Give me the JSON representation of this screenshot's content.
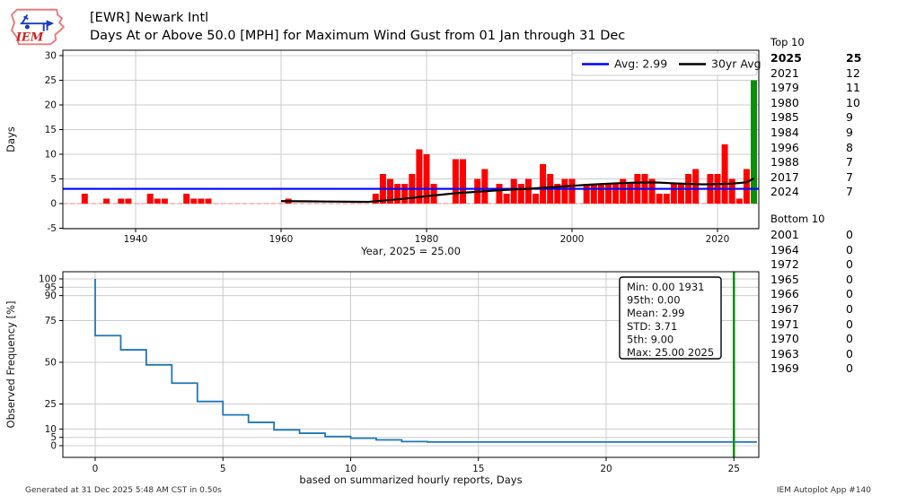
{
  "header": {
    "station_line": "[EWR] Newark Intl",
    "title_line": "Days At or Above 50.0 [MPH] for Maximum Wind Gust from 01 Jan through 31 Dec",
    "logo_text": "IEM"
  },
  "colors": {
    "bar": "#ff0000",
    "highlight": "#0a8f0a",
    "avg_line": "#0000ff",
    "avg30_line": "#000000",
    "freq_line": "#1f77b4",
    "grid": "#cccccc",
    "zero_dash": "#ff9999"
  },
  "chart_data": [
    {
      "type": "bar",
      "xlabel": "Year, 2025 = 25.00",
      "ylabel": "Days",
      "xticks": [
        1940,
        1960,
        1980,
        2000,
        2020
      ],
      "yticks": [
        -5,
        0,
        5,
        10,
        15,
        20,
        25,
        30
      ],
      "xlim": [
        1930,
        2027
      ],
      "ylim": [
        -5,
        31
      ],
      "grid": true,
      "legend_position": "upper right",
      "start_year": 1931,
      "values": [
        0,
        0,
        2,
        0,
        0,
        1,
        0,
        1,
        1,
        0,
        0,
        2,
        1,
        1,
        0,
        0,
        2,
        1,
        1,
        1,
        0,
        0,
        0,
        0,
        0,
        0,
        0,
        0,
        0,
        0,
        1,
        0,
        0,
        0,
        0,
        0,
        0,
        0,
        0,
        0,
        0,
        0,
        2,
        6,
        5,
        4,
        4,
        6,
        11,
        10,
        4,
        0,
        0,
        9,
        9,
        0,
        5,
        7,
        0,
        4,
        2,
        5,
        4,
        5,
        2,
        8,
        6,
        4,
        5,
        5,
        0,
        4,
        4,
        4,
        4,
        4,
        5,
        4,
        6,
        6,
        5,
        2,
        2,
        4,
        4,
        6,
        7,
        0,
        6,
        6,
        12,
        5,
        1,
        7,
        25
      ],
      "highlight_year": 2025,
      "highlight_value": 25,
      "avg_line": {
        "label": "Avg: 2.99",
        "value": 2.99
      },
      "avg30_line": {
        "label": "30yr Avg",
        "points": [
          [
            1960,
            0.5
          ],
          [
            1962,
            0.48
          ],
          [
            1964,
            0.45
          ],
          [
            1966,
            0.42
          ],
          [
            1968,
            0.4
          ],
          [
            1970,
            0.37
          ],
          [
            1972,
            0.35
          ],
          [
            1974,
            0.6
          ],
          [
            1976,
            0.85
          ],
          [
            1978,
            1.15
          ],
          [
            1980,
            1.5
          ],
          [
            1982,
            1.8
          ],
          [
            1984,
            2.1
          ],
          [
            1986,
            2.3
          ],
          [
            1988,
            2.5
          ],
          [
            1990,
            2.7
          ],
          [
            1992,
            2.85
          ],
          [
            1994,
            3.0
          ],
          [
            1996,
            3.2
          ],
          [
            1998,
            3.4
          ],
          [
            2000,
            3.6
          ],
          [
            2002,
            3.8
          ],
          [
            2004,
            3.95
          ],
          [
            2006,
            4.1
          ],
          [
            2008,
            4.2
          ],
          [
            2010,
            4.3
          ],
          [
            2012,
            4.25
          ],
          [
            2014,
            4.1
          ],
          [
            2016,
            4.0
          ],
          [
            2018,
            3.9
          ],
          [
            2020,
            3.95
          ],
          [
            2022,
            4.05
          ],
          [
            2024,
            4.3
          ],
          [
            2025,
            5.1
          ]
        ]
      }
    },
    {
      "type": "line",
      "xlabel": "based on summarized hourly reports, Days",
      "ylabel": "Observed Frequency [%]",
      "xticks": [
        0,
        5,
        10,
        15,
        20,
        25
      ],
      "yticks": [
        0,
        5,
        10,
        25,
        50,
        75,
        90,
        95,
        100
      ],
      "xlim": [
        -1.3,
        26
      ],
      "ylim": [
        -7,
        104
      ],
      "grid": true,
      "points": [
        [
          0,
          100
        ],
        [
          0,
          66
        ],
        [
          1,
          66
        ],
        [
          1,
          57.5
        ],
        [
          2,
          57.5
        ],
        [
          2,
          48.5
        ],
        [
          3,
          48.5
        ],
        [
          3,
          37.5
        ],
        [
          4,
          37.5
        ],
        [
          4,
          26.5
        ],
        [
          5,
          26.5
        ],
        [
          5,
          18.5
        ],
        [
          6,
          18.5
        ],
        [
          6,
          14
        ],
        [
          7,
          14
        ],
        [
          7,
          9.5
        ],
        [
          8,
          9.5
        ],
        [
          8,
          7.5
        ],
        [
          9,
          7.5
        ],
        [
          9,
          5.5
        ],
        [
          10,
          5.5
        ],
        [
          10,
          4.5
        ],
        [
          11,
          4.5
        ],
        [
          11,
          3.5
        ],
        [
          12,
          3.5
        ],
        [
          12,
          2.5
        ],
        [
          13,
          2.5
        ],
        [
          13,
          2.2
        ],
        [
          25.9,
          2.2
        ]
      ],
      "vline": {
        "x": 25
      },
      "stats_box": {
        "lines": [
          "Min: 0.00 1931",
          "95th: 0.00",
          "Mean: 2.99",
          "STD: 3.71",
          "5th: 9.00",
          "Max: 25.00 2025"
        ]
      }
    }
  ],
  "top10": {
    "title": "Top 10",
    "rows": [
      [
        "2025",
        "25"
      ],
      [
        "2021",
        "12"
      ],
      [
        "1979",
        "11"
      ],
      [
        "1980",
        "10"
      ],
      [
        "1985",
        "9"
      ],
      [
        "1984",
        "9"
      ],
      [
        "1996",
        "8"
      ],
      [
        "1988",
        "7"
      ],
      [
        "2017",
        "7"
      ],
      [
        "2024",
        "7"
      ]
    ]
  },
  "bottom10": {
    "title": "Bottom 10",
    "rows": [
      [
        "2001",
        "0"
      ],
      [
        "1964",
        "0"
      ],
      [
        "1972",
        "0"
      ],
      [
        "1965",
        "0"
      ],
      [
        "1966",
        "0"
      ],
      [
        "1967",
        "0"
      ],
      [
        "1971",
        "0"
      ],
      [
        "1970",
        "0"
      ],
      [
        "1963",
        "0"
      ],
      [
        "1969",
        "0"
      ]
    ]
  },
  "footer": {
    "left": "Generated at 31 Dec 2025 5:48 AM CST in 0.50s",
    "right": "IEM Autoplot App #140"
  }
}
